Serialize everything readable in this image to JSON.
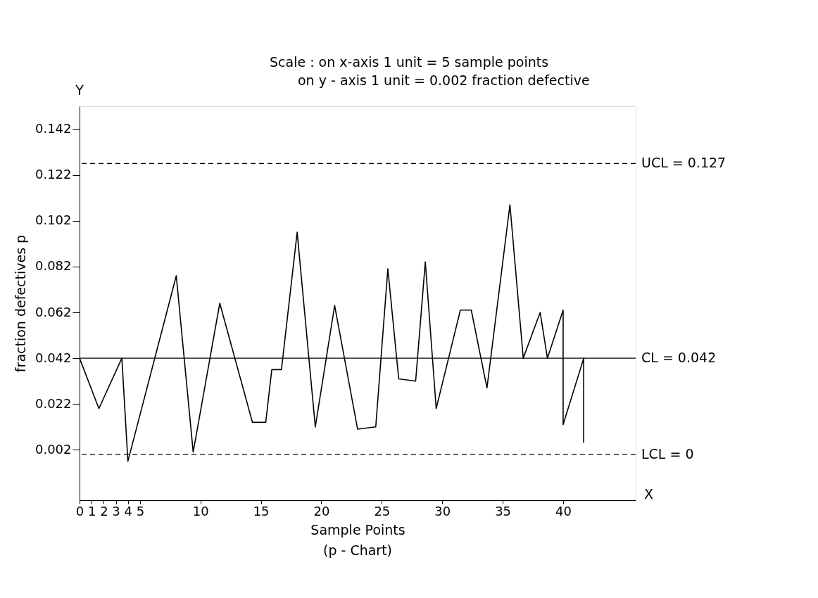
{
  "chart_data": {
    "type": "line",
    "xlabel": "Sample Points",
    "ylabel": "fraction defectives p",
    "x": [
      0,
      1.6,
      3.5,
      4.0,
      8.0,
      9.4,
      11.6,
      14.3,
      15.4,
      15.9,
      16.7,
      18.0,
      19.5,
      21.1,
      23.0,
      24.5,
      25.5,
      26.4,
      27.8,
      28.6,
      29.5,
      31.5,
      32.4,
      33.7,
      35.6,
      36.7,
      38.1,
      38.7,
      40.0,
      40.0,
      41.7,
      41.7
    ],
    "series": [
      {
        "color": "#000000",
        "values": [
          0.042,
          0.02,
          0.042,
          -0.003,
          0.078,
          0.001,
          0.066,
          0.014,
          0.014,
          0.037,
          0.037,
          0.097,
          0.012,
          0.065,
          0.011,
          0.012,
          0.081,
          0.033,
          0.032,
          0.084,
          0.02,
          0.063,
          0.063,
          0.029,
          0.109,
          0.042,
          0.062,
          0.042,
          0.063,
          0.013,
          0.042,
          0.005
        ]
      }
    ],
    "xlim": [
      0,
      46
    ],
    "xticks": [
      0,
      1,
      2,
      3,
      4,
      5,
      10,
      15,
      20,
      25,
      30,
      35,
      40
    ],
    "ylim": [
      -0.02,
      0.152
    ],
    "yticks": [
      0.002,
      0.022,
      0.042,
      0.062,
      0.082,
      0.102,
      0.122,
      0.142
    ],
    "ref_lines": [
      {
        "axis": "y",
        "value": 0.127,
        "label": "UCL = 0.127",
        "color": "#000000",
        "line_style": "dashed"
      },
      {
        "axis": "y",
        "value": 0.042,
        "label": "CL = 0.042",
        "color": "#000000",
        "line_style": "solid"
      },
      {
        "axis": "y",
        "value": 0,
        "label": "LCL = 0",
        "color": "#000000",
        "line_style": "dashed"
      }
    ],
    "annotations": [
      "Scale : on x-axis 1 unit = 5 sample points",
      "on y - axis 1 unit = 0.002 fraction defective",
      "(p - Chart)",
      "X",
      "Y"
    ],
    "grid": false,
    "marker": "none",
    "line_style": "solid"
  }
}
